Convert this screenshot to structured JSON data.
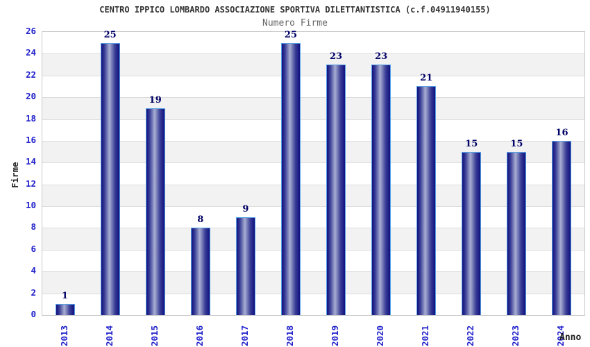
{
  "header": {
    "title": "CENTRO IPPICO LOMBARDO ASSOCIAZIONE SPORTIVA DILETTANTISTICA (c.f.04911940155)",
    "subtitle": "Numero Firme"
  },
  "axes": {
    "y_label": "Firme",
    "x_label": "Anno"
  },
  "chart_data": {
    "type": "bar",
    "title": "CENTRO IPPICO LOMBARDO ASSOCIAZIONE SPORTIVA DILETTANTISTICA (c.f.04911940155)",
    "subtitle": "Numero Firme",
    "xlabel": "Anno",
    "ylabel": "Firme",
    "categories": [
      "2013",
      "2014",
      "2015",
      "2016",
      "2017",
      "2018",
      "2019",
      "2020",
      "2021",
      "2022",
      "2023",
      "2024"
    ],
    "values": [
      1,
      25,
      19,
      8,
      9,
      25,
      23,
      23,
      21,
      15,
      15,
      16
    ],
    "ylim": [
      0,
      26
    ],
    "ytick_step": 2,
    "grid": true,
    "legend": false,
    "bands": "alternating gray/white every 2 units",
    "bar_value_labels": true
  },
  "colors": {
    "tick_label": "#2222cc",
    "value_label": "#000066",
    "bar_dark": "#10107e",
    "bar_mid": "#3b3f97",
    "bar_light": "#a8aed2",
    "bar_border": "#55a0e6",
    "band_gray": "#f2f2f2",
    "band_white": "#ffffff",
    "grid_line": "#dcdcdc",
    "plot_border": "#c9c9c9",
    "title_color": "#333333",
    "subtitle_color": "#666666",
    "axis_title_color": "#222222"
  }
}
